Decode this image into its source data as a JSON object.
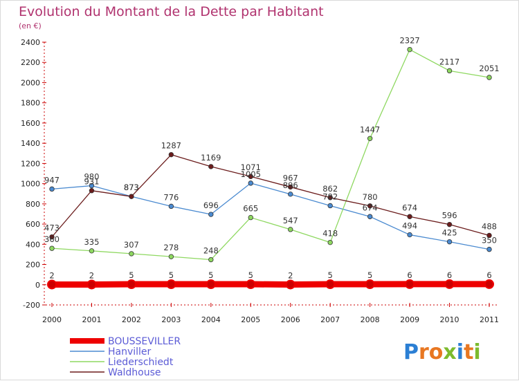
{
  "chart_data": {
    "type": "line",
    "title": "Evolution du Montant de la Dette par Habitant",
    "subtitle": "(en €)",
    "x": [
      "2000",
      "2001",
      "2002",
      "2003",
      "2004",
      "2005",
      "2006",
      "2007",
      "2008",
      "2009",
      "2010",
      "2011"
    ],
    "ylim": [
      -200,
      2400
    ],
    "yticks": [
      -200,
      0,
      200,
      400,
      600,
      800,
      1000,
      1200,
      1400,
      1600,
      1800,
      2000,
      2200,
      2400
    ],
    "grid": false,
    "legend_position": "bottom-left",
    "series": [
      {
        "name": "BOUSSEVILLER",
        "color": "#ee0000",
        "values": [
          2,
          2,
          5,
          5,
          5,
          5,
          2,
          5,
          5,
          6,
          6,
          6
        ]
      },
      {
        "name": "Hanviller",
        "color": "#4a8ad0",
        "values": [
          947,
          980,
          873,
          776,
          696,
          1005,
          896,
          782,
          674,
          494,
          425,
          350
        ]
      },
      {
        "name": "Liederschiedt",
        "color": "#8ed860",
        "values": [
          360,
          335,
          307,
          278,
          248,
          665,
          547,
          418,
          1447,
          2327,
          2117,
          2051
        ]
      },
      {
        "name": "Waldhouse",
        "color": "#6b1c1c",
        "values": [
          473,
          931,
          873,
          1287,
          1169,
          1071,
          967,
          862,
          780,
          674,
          596,
          488
        ]
      }
    ]
  },
  "logo": {
    "text": "Proxiti",
    "letters": [
      "P",
      "r",
      "o",
      "x",
      "i",
      "t",
      "i"
    ],
    "colors": [
      "#2b7fd4",
      "#e87722",
      "#e87722",
      "#7cbb2e",
      "#2b7fd4",
      "#e87722",
      "#7cbb2e"
    ]
  }
}
